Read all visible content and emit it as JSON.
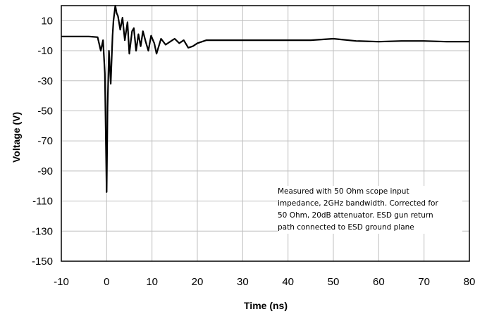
{
  "chart_data": {
    "type": "line",
    "xlabel": "Time (ns)",
    "ylabel": "Voltage (V)",
    "xlim": [
      -10,
      80
    ],
    "ylim": [
      -150,
      20
    ],
    "x_ticks": [
      -10,
      0,
      10,
      20,
      30,
      40,
      50,
      60,
      70,
      80
    ],
    "y_ticks": [
      10,
      -10,
      -30,
      -50,
      -70,
      -90,
      -110,
      -130,
      -150
    ],
    "x_tick_labels": [
      "-10",
      "0",
      "10",
      "20",
      "30",
      "40",
      "50",
      "60",
      "70",
      "80"
    ],
    "y_tick_labels": [
      "10",
      "-10",
      "-30",
      "-50",
      "-70",
      "-90",
      "-110",
      "-130",
      "-150"
    ],
    "grid": true,
    "annotation": [
      "Measured with 50 Ohm scope input",
      "impedance, 2GHz bandwidth.  Corrected for",
      "50 Ohm, 20dB attenuator. ESD gun return",
      "path connected to ESD ground plane"
    ],
    "series": [
      {
        "color": "#000000",
        "x": [
          -10,
          -7,
          -4,
          -2,
          -1.3,
          -0.8,
          -0.4,
          0,
          0.2,
          0.5,
          0.9,
          1.3,
          1.5,
          1.9,
          2.2,
          2.5,
          3,
          3.5,
          4,
          4.6,
          5,
          5.6,
          6,
          6.5,
          7,
          7.5,
          8,
          8.6,
          9.2,
          9.8,
          10.5,
          11,
          12,
          13,
          14,
          15,
          16,
          17,
          18,
          19,
          20,
          22,
          25,
          30,
          35,
          40,
          45,
          50,
          55,
          60,
          65,
          70,
          75,
          80
        ],
        "y": [
          -0.5,
          -0.5,
          -0.5,
          -1,
          -10,
          -3,
          -25,
          -104,
          -48,
          -10,
          -32,
          0,
          10,
          20,
          15,
          13,
          4,
          12,
          -3,
          9,
          -12,
          3,
          5,
          -10,
          1,
          -7,
          3,
          -4,
          -10,
          0,
          -5,
          -12,
          -2,
          -6,
          -4,
          -2,
          -5,
          -3,
          -8,
          -7,
          -5,
          -3,
          -3,
          -3,
          -3,
          -3,
          -3,
          -2,
          -3.5,
          -4,
          -3.5,
          -3.5,
          -4,
          -4
        ]
      }
    ]
  }
}
